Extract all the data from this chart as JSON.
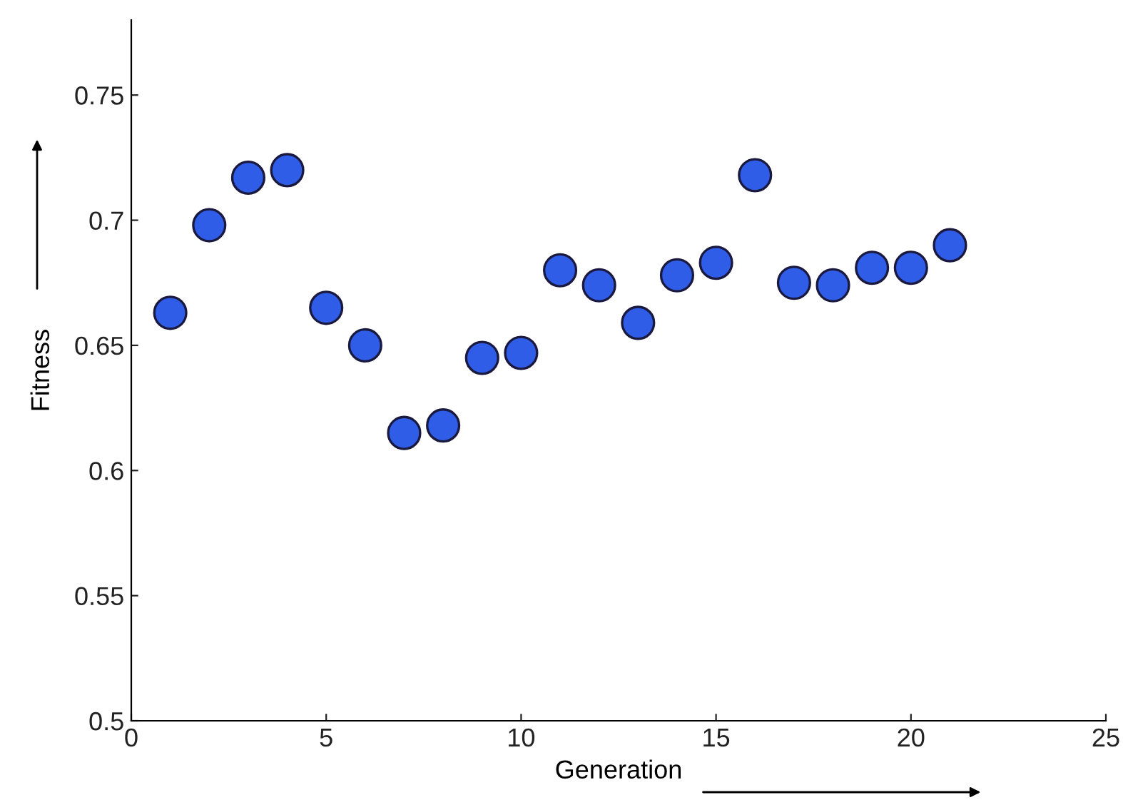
{
  "chart_data": {
    "type": "scatter",
    "xlabel": "Generation",
    "ylabel": "Fitness",
    "x": [
      1,
      2,
      3,
      4,
      5,
      6,
      7,
      8,
      9,
      10,
      11,
      12,
      13,
      14,
      15,
      16,
      17,
      18,
      19,
      20,
      21
    ],
    "series": [
      {
        "color": "#2f5de8",
        "values": [
          0.663,
          0.698,
          0.717,
          0.72,
          0.665,
          0.65,
          0.615,
          0.618,
          0.645,
          0.647,
          0.68,
          0.674,
          0.659,
          0.678,
          0.683,
          0.718,
          0.675,
          0.674,
          0.681,
          0.681,
          0.69
        ]
      }
    ],
    "xlim": [
      0,
      25
    ],
    "xticks": [
      0,
      5,
      10,
      15,
      20,
      25
    ],
    "ylim": [
      0.5,
      0.78
    ],
    "yticks": [
      0.5,
      0.55,
      0.6,
      0.65,
      0.7,
      0.75
    ],
    "marker": "circle",
    "grid": false,
    "legend": false
  }
}
